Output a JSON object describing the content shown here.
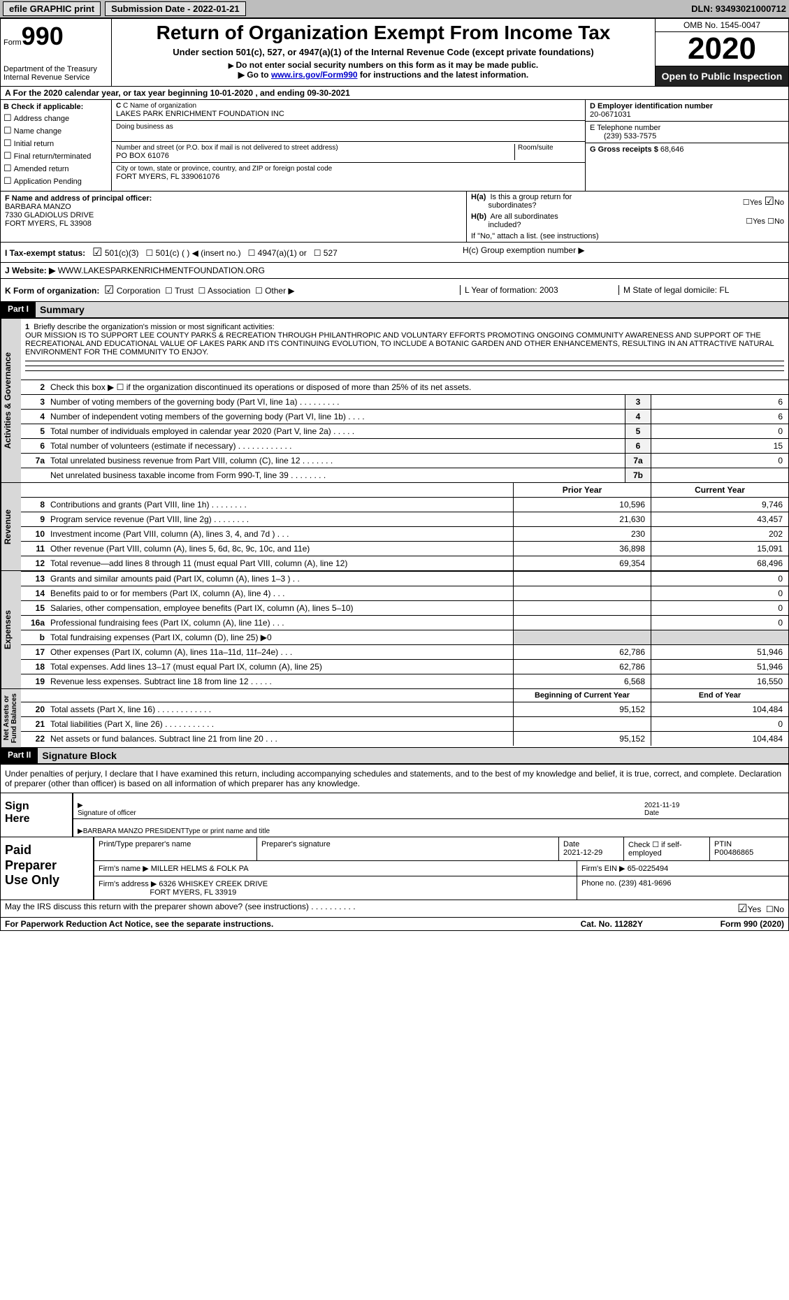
{
  "topbar": {
    "efile": "efile GRAPHIC print",
    "submission": "Submission Date - 2022-01-21",
    "dln": "DLN: 93493021000712"
  },
  "header": {
    "form_word": "Form",
    "form_num": "990",
    "dept": "Department of the Treasury\nInternal Revenue Service",
    "title": "Return of Organization Exempt From Income Tax",
    "sub": "Under section 501(c), 527, or 4947(a)(1) of the Internal Revenue Code (except private foundations)",
    "note1": "Do not enter social security numbers on this form as it may be made public.",
    "note2_pre": "Go to ",
    "note2_link": "www.irs.gov/Form990",
    "note2_post": " for instructions and the latest information.",
    "omb": "OMB No. 1545-0047",
    "year": "2020",
    "open": "Open to Public Inspection"
  },
  "rowA": "A For the 2020 calendar year, or tax year beginning 10-01-2020   , and ending 09-30-2021",
  "boxB": {
    "label": "B Check if applicable:",
    "items": [
      "Address change",
      "Name change",
      "Initial return",
      "Final return/terminated",
      "Amended return",
      "Application Pending"
    ]
  },
  "boxC": {
    "name_label": "C Name of organization",
    "name": "LAKES PARK ENRICHMENT FOUNDATION INC",
    "dba_label": "Doing business as",
    "street_label": "Number and street (or P.O. box if mail is not delivered to street address)",
    "room_label": "Room/suite",
    "street": "PO BOX 61076",
    "city_label": "City or town, state or province, country, and ZIP or foreign postal code",
    "city": "FORT MYERS, FL  339061076"
  },
  "boxD": {
    "label": "D Employer identification number",
    "value": "20-0671031"
  },
  "boxE": {
    "label": "E Telephone number",
    "value": "(239) 533-7575"
  },
  "boxG": {
    "label": "G Gross receipts $",
    "value": "68,646"
  },
  "boxF": {
    "label": "F  Name and address of principal officer:",
    "l1": "BARBARA MANZO",
    "l2": "7330 GLADIOLUS DRIVE",
    "l3": "FORT MYERS, FL  33908"
  },
  "boxH": {
    "ha": "H(a)  Is this a group return for subordinates?",
    "hb": "H(b)  Are all subordinates included?",
    "hb_note": "If \"No,\" attach a list. (see instructions)",
    "hc": "H(c)  Group exemption number ▶",
    "yes": "Yes",
    "no": "No"
  },
  "rowI": {
    "label": "I  Tax-exempt status:",
    "o1": "501(c)(3)",
    "o2": "501(c) (  ) ◀ (insert no.)",
    "o3": "4947(a)(1) or",
    "o4": "527"
  },
  "rowJ": {
    "label": "J  Website: ▶",
    "value": "WWW.LAKESPARKENRICHMENTFOUNDATION.ORG"
  },
  "rowK": {
    "label": "K Form of organization:",
    "opts": [
      "Corporation",
      "Trust",
      "Association",
      "Other ▶"
    ],
    "L": "L Year of formation: 2003",
    "M": "M State of legal domicile: FL"
  },
  "part1": {
    "tag": "Part I",
    "title": "Summary"
  },
  "mission_label": "Briefly describe the organization's mission or most significant activities:",
  "mission": "OUR MISSION IS TO SUPPORT LEE COUNTY PARKS & RECREATION THROUGH PHILANTHROPIC AND VOLUNTARY EFFORTS PROMOTING ONGOING COMMUNITY AWARENESS AND SUPPORT OF THE RECREATIONAL AND EDUCATIONAL VALUE OF LAKES PARK AND ITS CONTINUING EVOLUTION, TO INCLUDE A BOTANIC GARDEN AND OTHER ENHANCEMENTS, RESULTING IN AN ATTRACTIVE NATURAL ENVIRONMENT FOR THE COMMUNITY TO ENJOY.",
  "gov": {
    "l2": "Check this box ▶ ☐  if the organization discontinued its operations or disposed of more than 25% of its net assets.",
    "rows": [
      {
        "n": "3",
        "label": "Number of voting members of the governing body (Part VI, line 1a)   .    .    .    .    .    .    .    .    .",
        "cn": "3",
        "v": "6"
      },
      {
        "n": "4",
        "label": "Number of independent voting members of the governing body (Part VI, line 1b)    .    .    .    .",
        "cn": "4",
        "v": "6"
      },
      {
        "n": "5",
        "label": "Total number of individuals employed in calendar year 2020 (Part V, line 2a)   .    .    .    .    .",
        "cn": "5",
        "v": "0"
      },
      {
        "n": "6",
        "label": "Total number of volunteers (estimate if necessary)   .    .    .    .    .    .    .    .    .    .    .    .",
        "cn": "6",
        "v": "15"
      },
      {
        "n": "7a",
        "label": "Total unrelated business revenue from Part VIII, column (C), line 12   .    .    .    .    .    .    .",
        "cn": "7a",
        "v": "0"
      },
      {
        "n": "",
        "label": "Net unrelated business taxable income from Form 990-T, line 39   .    .    .    .    .    .    .    .",
        "cn": "7b",
        "v": ""
      }
    ]
  },
  "twoColHeader": {
    "prior": "Prior Year",
    "curr": "Current Year"
  },
  "revenue_label": "Revenue",
  "revenue": [
    {
      "n": "8",
      "label": "Contributions and grants (Part VIII, line 1h)   .    .    .    .    .    .    .    .",
      "p": "10,596",
      "c": "9,746"
    },
    {
      "n": "9",
      "label": "Program service revenue (Part VIII, line 2g)   .    .    .    .    .    .    .    .",
      "p": "21,630",
      "c": "43,457"
    },
    {
      "n": "10",
      "label": "Investment income (Part VIII, column (A), lines 3, 4, and 7d )   .    .    .",
      "p": "230",
      "c": "202"
    },
    {
      "n": "11",
      "label": "Other revenue (Part VIII, column (A), lines 5, 6d, 8c, 9c, 10c, and 11e)",
      "p": "36,898",
      "c": "15,091"
    },
    {
      "n": "12",
      "label": "Total revenue—add lines 8 through 11 (must equal Part VIII, column (A), line 12)",
      "p": "69,354",
      "c": "68,496"
    }
  ],
  "expenses_label": "Expenses",
  "expenses": [
    {
      "n": "13",
      "label": "Grants and similar amounts paid (Part IX, column (A), lines 1–3 )  .    .",
      "p": "",
      "c": "0"
    },
    {
      "n": "14",
      "label": "Benefits paid to or for members (Part IX, column (A), line 4)   .    .    .",
      "p": "",
      "c": "0"
    },
    {
      "n": "15",
      "label": "Salaries, other compensation, employee benefits (Part IX, column (A), lines 5–10)",
      "p": "",
      "c": "0"
    },
    {
      "n": "16a",
      "label": "Professional fundraising fees (Part IX, column (A), line 11e)   .    .    .",
      "p": "",
      "c": "0"
    },
    {
      "n": "b",
      "label": "Total fundraising expenses (Part IX, column (D), line 25) ▶0",
      "p": "SHADE",
      "c": "SHADE"
    },
    {
      "n": "17",
      "label": "Other expenses (Part IX, column (A), lines 11a–11d, 11f–24e)   .    .    .",
      "p": "62,786",
      "c": "51,946"
    },
    {
      "n": "18",
      "label": "Total expenses. Add lines 13–17 (must equal Part IX, column (A), line 25)",
      "p": "62,786",
      "c": "51,946"
    },
    {
      "n": "19",
      "label": "Revenue less expenses. Subtract line 18 from line 12   .    .    .    .    .",
      "p": "6,568",
      "c": "16,550"
    }
  ],
  "netHeader": {
    "prior": "Beginning of Current Year",
    "curr": "End of Year"
  },
  "net_label": "Net Assets or\nFund Balances",
  "net": [
    {
      "n": "20",
      "label": "Total assets (Part X, line 16)  .    .    .    .    .    .    .    .    .    .    .    .",
      "p": "95,152",
      "c": "104,484"
    },
    {
      "n": "21",
      "label": "Total liabilities (Part X, line 26)  .    .    .    .    .    .    .    .    .    .    .",
      "p": "",
      "c": "0"
    },
    {
      "n": "22",
      "label": "Net assets or fund balances. Subtract line 21 from line 20   .    .    .",
      "p": "95,152",
      "c": "104,484"
    }
  ],
  "part2": {
    "tag": "Part II",
    "title": "Signature Block"
  },
  "penalty": "Under penalties of perjury, I declare that I have examined this return, including accompanying schedules and statements, and to the best of my knowledge and belief, it is true, correct, and complete. Declaration of preparer (other than officer) is based on all information of which preparer has any knowledge.",
  "sign": {
    "here": "Sign Here",
    "sig_label": "Signature of officer",
    "date": "2021-11-19",
    "date_label": "Date",
    "name": "BARBARA MANZO  PRESIDENT",
    "name_label": "Type or print name and title"
  },
  "paid": {
    "title": "Paid Preparer Use Only",
    "h1": "Print/Type preparer's name",
    "h2": "Preparer's signature",
    "h3": "Date",
    "h3v": "2021-12-29",
    "h4": "Check ☐ if self-employed",
    "h5": "PTIN",
    "h5v": "P00486865",
    "firm_name_l": "Firm's name    ▶",
    "firm_name": "MILLER HELMS & FOLK PA",
    "firm_ein_l": "Firm's EIN ▶",
    "firm_ein": "65-0225494",
    "firm_addr_l": "Firm's address ▶",
    "firm_addr1": "6326 WHISKEY CREEK DRIVE",
    "firm_addr2": "FORT MYERS, FL  33919",
    "phone_l": "Phone no.",
    "phone": "(239) 481-9696"
  },
  "discuss": {
    "q": "May the IRS discuss this return with the preparer shown above? (see instructions)   .    .    .    .    .    .    .    .    .    .",
    "yes": "Yes",
    "no": "No"
  },
  "footer": {
    "l": "For Paperwork Reduction Act Notice, see the separate instructions.",
    "m": "Cat. No. 11282Y",
    "r": "Form 990 (2020)"
  }
}
